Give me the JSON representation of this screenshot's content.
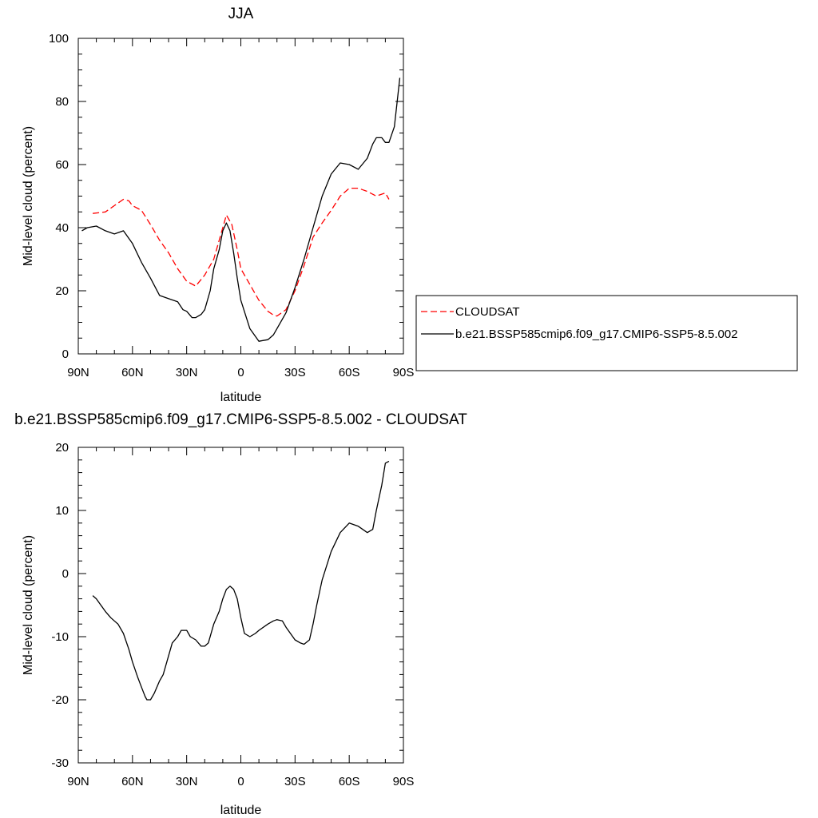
{
  "chart_data": [
    {
      "type": "line",
      "title": "JJA",
      "xlabel": "latitude",
      "ylabel": "Mid-level cloud (percent)",
      "xlim": [
        90,
        -90
      ],
      "ylim": [
        0,
        100
      ],
      "x_tick_values": [
        90,
        60,
        30,
        0,
        -30,
        -60,
        -90
      ],
      "x_tick_labels": [
        "90N",
        "60N",
        "30N",
        "0",
        "30S",
        "60S",
        "90S"
      ],
      "y_tick_values": [
        0,
        20,
        40,
        60,
        80,
        100
      ],
      "y_tick_labels": [
        "0",
        "20",
        "40",
        "60",
        "80",
        "100"
      ],
      "legend_position": "right",
      "series": [
        {
          "name": "CLOUDSAT",
          "color": "#ff0000",
          "dash": "dashed",
          "x": [
            82,
            75,
            70,
            65,
            62,
            60,
            55,
            50,
            45,
            40,
            35,
            30,
            25,
            20,
            15,
            10,
            8,
            5,
            2,
            0,
            -5,
            -10,
            -15,
            -18,
            -20,
            -25,
            -30,
            -35,
            -40,
            -45,
            -50,
            -55,
            -60,
            -65,
            -70,
            -75,
            -80,
            -82
          ],
          "y": [
            44.5,
            45,
            47,
            49,
            48.5,
            47,
            45.5,
            41,
            36,
            32,
            27,
            23,
            21.5,
            25,
            30,
            40,
            44,
            41,
            33,
            27,
            22,
            17,
            13.5,
            12.3,
            12,
            14,
            20,
            28,
            37,
            41.5,
            45.5,
            50,
            52.5,
            52.5,
            51.5,
            50,
            51,
            49
          ]
        },
        {
          "name": "b.e21.BSSP585cmip6.f09_g17.CMIP6-SSP5-8.5.002",
          "color": "#000000",
          "dash": "solid",
          "x": [
            88,
            85,
            80,
            75,
            70,
            65,
            60,
            55,
            50,
            45,
            40,
            35,
            32,
            30,
            27,
            25,
            22,
            20,
            17,
            15,
            12,
            10,
            8,
            6,
            4,
            2,
            0,
            -5,
            -10,
            -15,
            -18,
            -20,
            -25,
            -30,
            -35,
            -40,
            -45,
            -50,
            -55,
            -60,
            -65,
            -70,
            -73,
            -75,
            -78,
            -80,
            -82,
            -85,
            -88
          ],
          "y": [
            39,
            40,
            40.5,
            39,
            38,
            39,
            35,
            29,
            24,
            18.5,
            17.5,
            16.5,
            14,
            13.5,
            11.5,
            11.5,
            12.5,
            14,
            20,
            27,
            33,
            39,
            41.5,
            39,
            32,
            24,
            17,
            8,
            4,
            4.5,
            6,
            8,
            13,
            21,
            30,
            40,
            50,
            57,
            60.5,
            60,
            58.5,
            62,
            66.5,
            68.5,
            68.5,
            67,
            67,
            72,
            87.5
          ]
        }
      ]
    },
    {
      "type": "line",
      "title": "b.e21.BSSP585cmip6.f09_g17.CMIP6-SSP5-8.5.002 - CLOUDSAT",
      "xlabel": "latitude",
      "ylabel": "Mid-level cloud (percent)",
      "xlim": [
        90,
        -90
      ],
      "ylim": [
        -30,
        20
      ],
      "x_tick_values": [
        90,
        60,
        30,
        0,
        -30,
        -60,
        -90
      ],
      "x_tick_labels": [
        "90N",
        "60N",
        "30N",
        "0",
        "30S",
        "60S",
        "90S"
      ],
      "y_tick_values": [
        -30,
        -20,
        -10,
        0,
        10,
        20
      ],
      "y_tick_labels": [
        "-30",
        "-20",
        "-10",
        "0",
        "10",
        "20"
      ],
      "series": [
        {
          "color": "#000000",
          "dash": "solid",
          "x": [
            82,
            80,
            75,
            72,
            70,
            68,
            65,
            62,
            60,
            57,
            55,
            53,
            52,
            50,
            48,
            45,
            43,
            40,
            38,
            35,
            33,
            30,
            28,
            25,
            22,
            20,
            18,
            15,
            12,
            10,
            8,
            6,
            4,
            2,
            0,
            -2,
            -5,
            -8,
            -10,
            -15,
            -18,
            -20,
            -23,
            -25,
            -30,
            -33,
            -35,
            -38,
            -40,
            -42,
            -45,
            -50,
            -55,
            -60,
            -65,
            -70,
            -73,
            -75,
            -78,
            -80,
            -82
          ],
          "y": [
            -3.5,
            -4,
            -6,
            -7,
            -7.5,
            -8,
            -9.5,
            -12,
            -14,
            -16.5,
            -18,
            -19.5,
            -20,
            -20,
            -19,
            -17,
            -16,
            -13,
            -11,
            -10,
            -9,
            -9,
            -10,
            -10.5,
            -11.5,
            -11.5,
            -11,
            -8,
            -6,
            -4,
            -2.5,
            -2,
            -2.5,
            -4,
            -7,
            -9.5,
            -10,
            -9.5,
            -9,
            -8,
            -7.5,
            -7.3,
            -7.5,
            -8.5,
            -10.5,
            -11,
            -11.2,
            -10.5,
            -8,
            -5,
            -1,
            3.5,
            6.5,
            8,
            7.5,
            6.5,
            7,
            10,
            14,
            17.5,
            17.8
          ]
        }
      ]
    }
  ]
}
